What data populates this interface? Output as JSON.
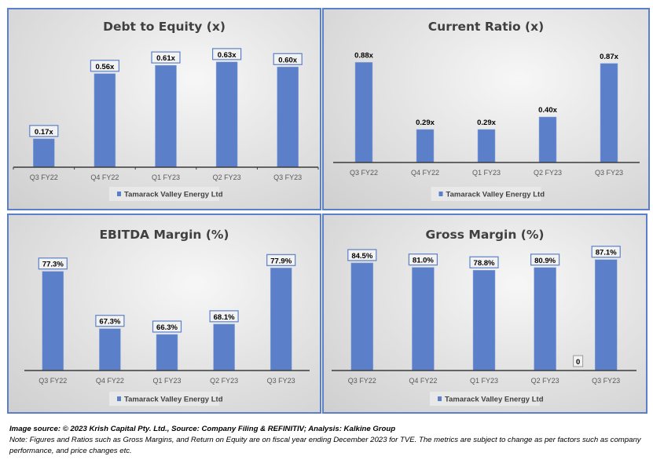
{
  "colors": {
    "bar": "#5b80c9",
    "border": "#5b80c9",
    "axis": "#3b3b3b",
    "label_box": "#5b80c9"
  },
  "chart_data": [
    {
      "type": "bar",
      "title": "Debt to Equity (x)",
      "categories": [
        "Q3 FY22",
        "Q4 FY22",
        "Q1 FY23",
        "Q2 FY23",
        "Q3 FY23"
      ],
      "series": [
        {
          "name": "Tamarack Valley Energy Ltd",
          "values": [
            0.17,
            0.56,
            0.61,
            0.63,
            0.6
          ]
        }
      ],
      "data_labels": [
        "0.17x",
        "0.56x",
        "0.61x",
        "0.63x",
        "0.60x"
      ],
      "ylim": [
        0,
        0.7
      ],
      "legend": "bottom",
      "grid": false,
      "boxed_labels": true
    },
    {
      "type": "bar",
      "title": "Current Ratio (x)",
      "categories": [
        "Q3 FY22",
        "Q4 FY22",
        "Q1 FY23",
        "Q2 FY23",
        "Q3 FY23"
      ],
      "series": [
        {
          "name": "Tamarack Valley Energy Ltd",
          "values": [
            0.88,
            0.29,
            0.29,
            0.4,
            0.87
          ]
        }
      ],
      "data_labels": [
        "0.88x",
        "0.29x",
        "0.29x",
        "0.40x",
        "0.87x"
      ],
      "ylim": [
        0,
        1.0
      ],
      "legend": "bottom",
      "grid": false,
      "boxed_labels": false
    },
    {
      "type": "bar",
      "title": "EBITDA Margin (%)",
      "categories": [
        "Q3 FY22",
        "Q4 FY22",
        "Q1 FY23",
        "Q2 FY23",
        "Q3 FY23"
      ],
      "series": [
        {
          "name": "Tamarack Valley Energy Ltd",
          "values": [
            77.3,
            67.3,
            66.3,
            68.1,
            77.9
          ]
        }
      ],
      "data_labels": [
        "77.3%",
        "67.3%",
        "66.3%",
        "68.1%",
        "77.9%"
      ],
      "ylim": [
        60,
        80
      ],
      "legend": "bottom",
      "grid": false,
      "boxed_labels": true
    },
    {
      "type": "bar",
      "title": "Gross Margin (%)",
      "categories": [
        "Q3 FY22",
        "Q4 FY22",
        "Q1 FY23",
        "Q2 FY23",
        "Q3 FY23"
      ],
      "series": [
        {
          "name": "Tamarack Valley Energy Ltd",
          "values": [
            84.5,
            81.0,
            78.8,
            80.9,
            87.1
          ]
        }
      ],
      "data_labels": [
        "84.5%",
        "81.0%",
        "78.8%",
        "80.9%",
        "87.1%"
      ],
      "annotations": [
        "0"
      ],
      "ylim": [
        0,
        90
      ],
      "legend": "bottom",
      "grid": false,
      "boxed_labels": true
    }
  ],
  "footer": {
    "source": "Image source: © 2023 Krish Capital Pty. Ltd., Source: Company Filing & REFINITIV; Analysis: Kalkine Group",
    "note": "Note: Figures and Ratios such as  Gross Margins, and Return on Equity are on fiscal year ending  December  2023  for TVE. The metrics are subject to change as per factors such as company performance, and price changes etc."
  }
}
